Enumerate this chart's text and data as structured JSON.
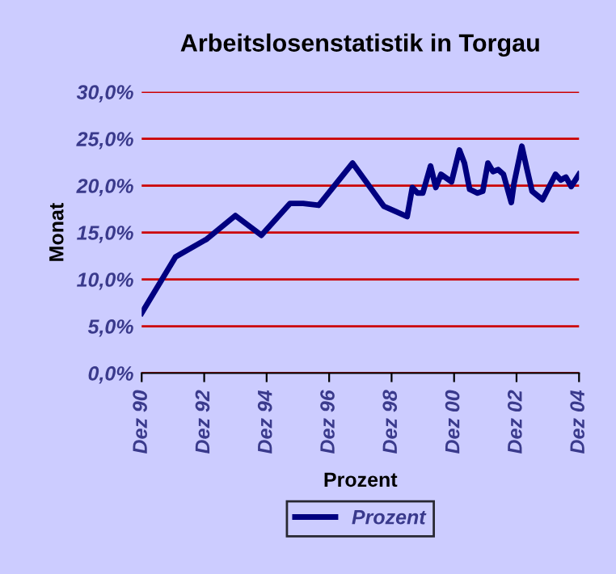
{
  "chart_data": {
    "type": "line",
    "title": "Arbeitslosenstatistik in Torgau",
    "xlabel": "Prozent",
    "ylabel": "Monat",
    "x": [
      "1990-12",
      "1992-01",
      "1993-01",
      "1993-12",
      "1994-10",
      "1995-09",
      "1996-02",
      "1996-08",
      "1997-09",
      "1998-09",
      "1999-06",
      "1999-08",
      "1999-10",
      "1999-12",
      "2000-03",
      "2000-05",
      "2000-07",
      "2000-11",
      "2001-02",
      "2001-04",
      "2001-06",
      "2001-09",
      "2001-11",
      "2002-01",
      "2002-03",
      "2002-05",
      "2002-07",
      "2002-10",
      "2002-11",
      "2003-02",
      "2003-04",
      "2003-06",
      "2003-10",
      "2004-03",
      "2004-05",
      "2004-07",
      "2004-09",
      "2004-12"
    ],
    "series": [
      {
        "name": "Prozent",
        "color": "#000080",
        "values": [
          6.4,
          12.4,
          14.3,
          16.8,
          14.7,
          18.1,
          18.1,
          17.9,
          22.4,
          17.8,
          16.7,
          19.8,
          19.2,
          19.2,
          22.1,
          19.8,
          21.2,
          20.4,
          23.8,
          22.4,
          19.6,
          19.2,
          19.4,
          22.4,
          21.5,
          21.7,
          21.2,
          18.2,
          20.2,
          24.2,
          21.8,
          19.4,
          18.5,
          21.2,
          20.6,
          20.9,
          19.9,
          21.2
        ]
      }
    ],
    "xlim": [
      "1990-12",
      "2004-12"
    ],
    "xticks": [
      {
        "value": "1990-12",
        "label": "Dez 90"
      },
      {
        "value": "1992-12",
        "label": "Dez 92"
      },
      {
        "value": "1994-12",
        "label": "Dez 94"
      },
      {
        "value": "1996-12",
        "label": "Dez 96"
      },
      {
        "value": "1998-12",
        "label": "Dez 98"
      },
      {
        "value": "2000-12",
        "label": "Dez 00"
      },
      {
        "value": "2002-12",
        "label": "Dez 02"
      },
      {
        "value": "2004-12",
        "label": "Dez 04"
      }
    ],
    "ylim": [
      0,
      30
    ],
    "yticks": [
      {
        "value": 0,
        "label": "0,0%"
      },
      {
        "value": 5,
        "label": "5,0%"
      },
      {
        "value": 10,
        "label": "10,0%"
      },
      {
        "value": 15,
        "label": "15,0%"
      },
      {
        "value": 20,
        "label": "20,0%"
      },
      {
        "value": 25,
        "label": "25,0%"
      },
      {
        "value": 30,
        "label": "30,0%"
      }
    ],
    "grid": "y",
    "legend": "bottom",
    "line_style": "solid",
    "marker": "none"
  }
}
